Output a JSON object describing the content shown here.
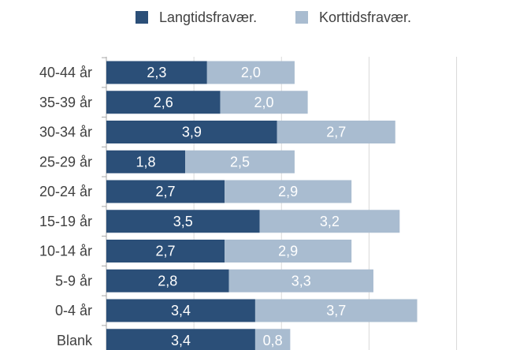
{
  "chart_data": {
    "type": "stacked-barh",
    "categories": [
      "40-44 år",
      "35-39 år",
      "30-34 år",
      "25-29 år",
      "20-24 år",
      "15-19 år",
      "10-14 år",
      "5-9 år",
      "0-4 år",
      "Blank"
    ],
    "series": [
      {
        "name": "Langtidsfravær.",
        "color": "#2b4f78",
        "values": [
          2.3,
          2.6,
          3.9,
          1.8,
          2.7,
          3.5,
          2.7,
          2.8,
          3.4,
          3.4
        ],
        "value_labels": [
          "2,3",
          "2,6",
          "3,9",
          "1,8",
          "2,7",
          "3,5",
          "2,7",
          "2,8",
          "3,4",
          "3,4"
        ]
      },
      {
        "name": "Korttidsfravær.",
        "color": "#a9bcd0",
        "values": [
          2.0,
          2.0,
          2.7,
          2.5,
          2.9,
          3.2,
          2.9,
          3.3,
          3.7,
          0.8
        ],
        "value_labels": [
          "2,0",
          "2,0",
          "2,7",
          "2,5",
          "2,9",
          "3,2",
          "2,9",
          "3,3",
          "3,7",
          "0,8"
        ]
      }
    ],
    "xlim": [
      0,
      9.7
    ],
    "xticks": [
      0,
      2,
      4,
      6,
      8
    ],
    "grid": true,
    "legend": "top"
  }
}
